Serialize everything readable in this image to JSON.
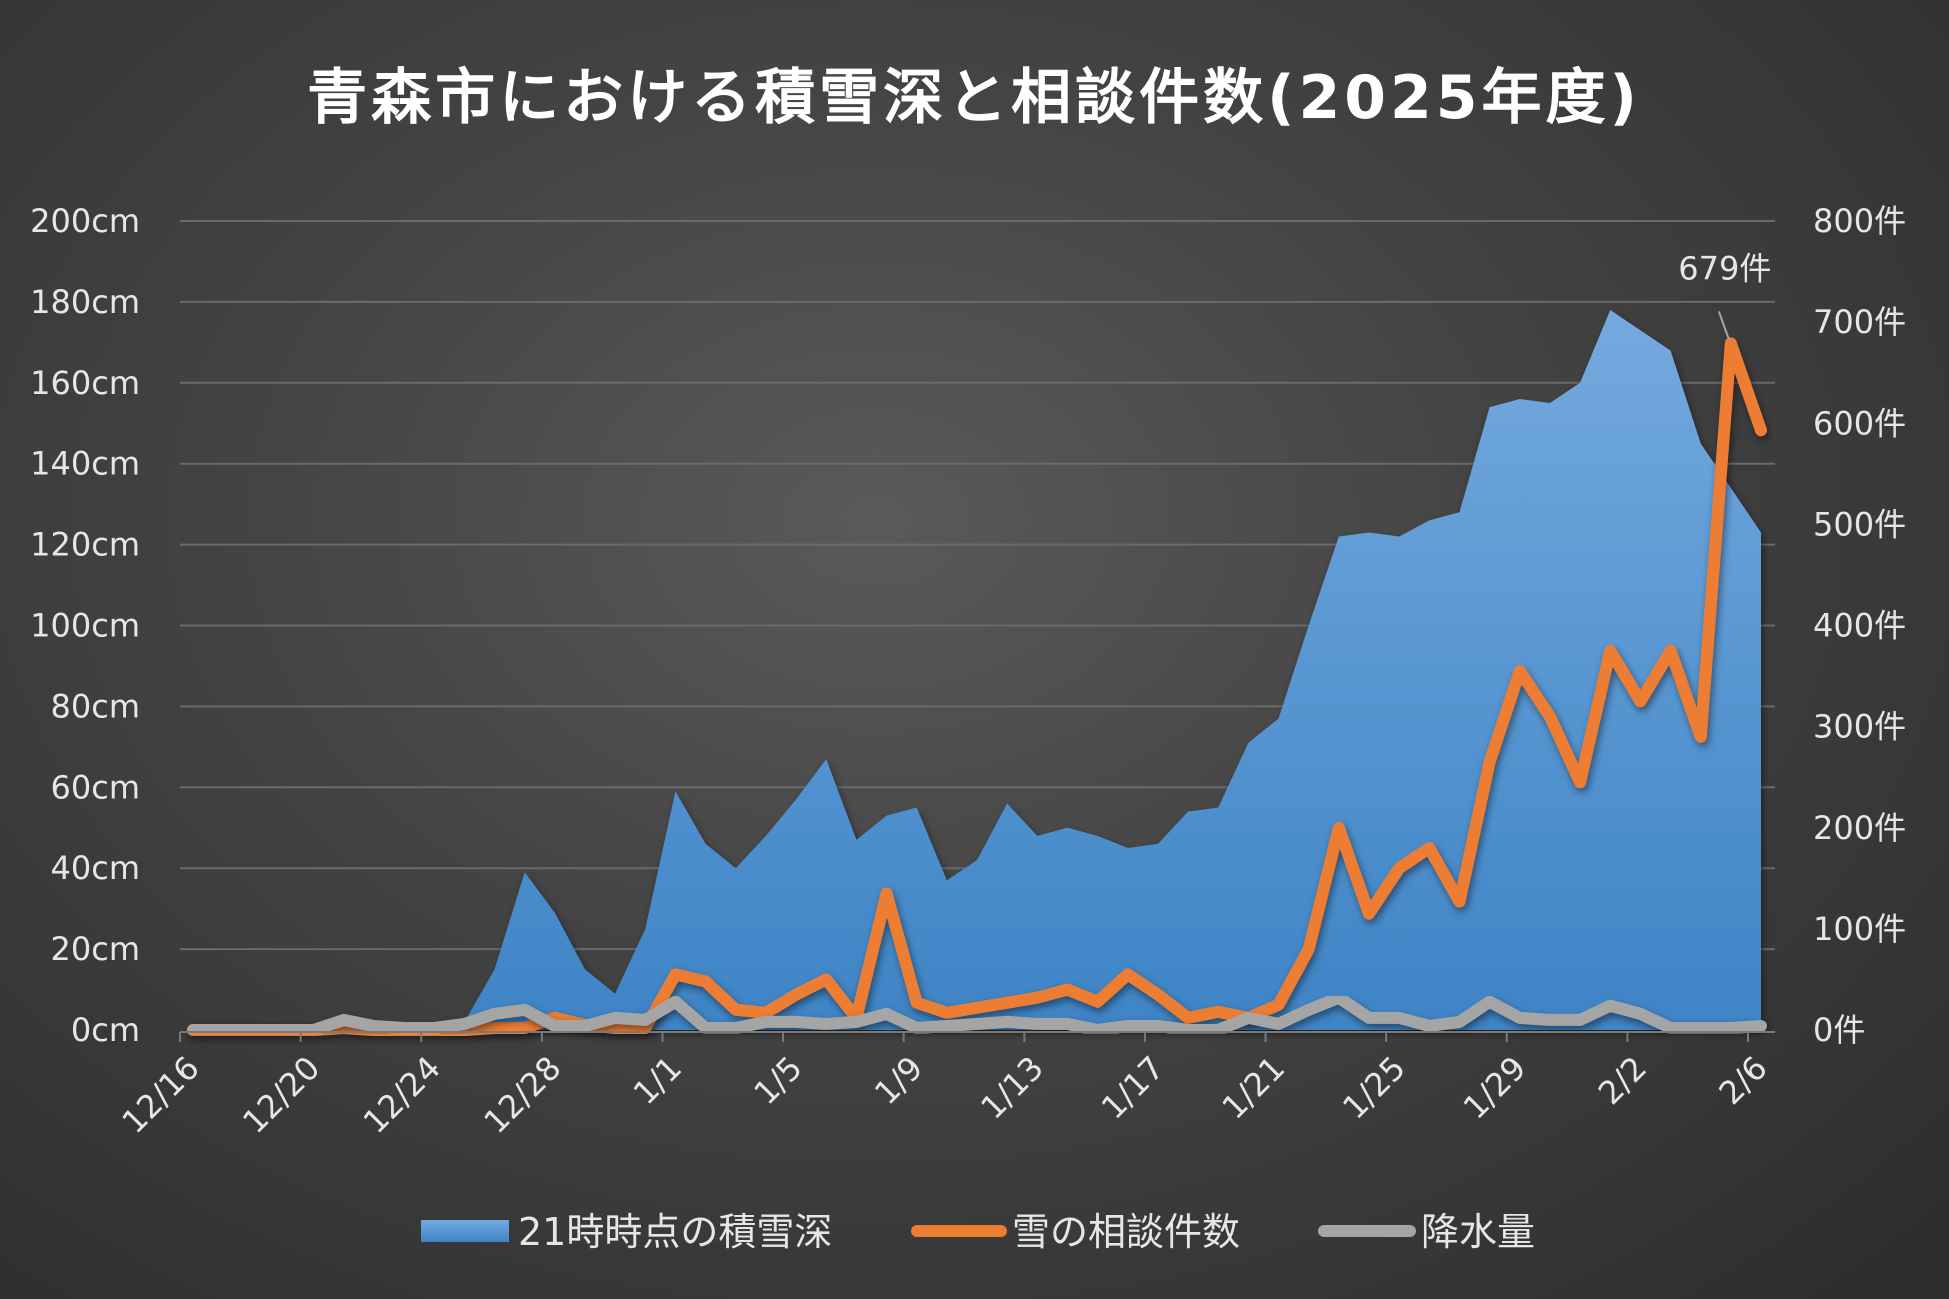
{
  "chart_data": {
    "type": "area+line",
    "title": "青森市における積雪深と相談件数(2025年度)",
    "x": [
      "12/16",
      "12/17",
      "12/18",
      "12/19",
      "12/20",
      "12/21",
      "12/22",
      "12/23",
      "12/24",
      "12/25",
      "12/26",
      "12/27",
      "12/28",
      "12/29",
      "12/30",
      "12/31",
      "1/1",
      "1/2",
      "1/3",
      "1/4",
      "1/5",
      "1/6",
      "1/7",
      "1/8",
      "1/9",
      "1/10",
      "1/11",
      "1/12",
      "1/13",
      "1/14",
      "1/15",
      "1/16",
      "1/17",
      "1/18",
      "1/19",
      "1/20",
      "1/21",
      "1/22",
      "1/23",
      "1/24",
      "1/25",
      "1/26",
      "1/27",
      "1/28",
      "1/29",
      "1/30",
      "1/31",
      "2/1",
      "2/2",
      "2/3",
      "2/4",
      "2/5",
      "2/6"
    ],
    "x_tick_labels": [
      "12/16",
      "12/20",
      "12/24",
      "12/28",
      "1/1",
      "1/5",
      "1/9",
      "1/13",
      "1/17",
      "1/21",
      "1/25",
      "1/29",
      "2/2",
      "2/6"
    ],
    "y_left": {
      "ticks": [
        "0cm",
        "20cm",
        "40cm",
        "60cm",
        "80cm",
        "100cm",
        "120cm",
        "140cm",
        "160cm",
        "180cm",
        "200cm"
      ],
      "range": [
        0,
        200
      ]
    },
    "y_right": {
      "ticks": [
        "0件",
        "100件",
        "200件",
        "300件",
        "400件",
        "500件",
        "600件",
        "700件",
        "800件"
      ],
      "range": [
        0,
        800
      ]
    },
    "grid": true,
    "legend_position": "bottom",
    "series": [
      {
        "name": "21時時点の積雪深",
        "type": "area",
        "axis": "left",
        "color": "#4a90d9",
        "values": [
          0,
          0,
          0,
          0,
          0,
          0,
          0,
          0,
          0,
          2,
          15,
          39,
          29,
          15,
          9,
          25,
          59,
          46,
          40,
          48,
          57,
          67,
          47,
          53,
          55,
          37,
          42,
          56,
          48,
          50,
          48,
          45,
          46,
          54,
          55,
          71,
          77,
          100,
          122,
          123,
          122,
          126,
          128,
          154,
          156,
          155,
          160,
          178,
          173,
          168,
          145,
          134,
          123
        ]
      },
      {
        "name": "雪の相談件数",
        "type": "line",
        "axis": "right",
        "color": "#ed7d31",
        "values": [
          0,
          0,
          0,
          0,
          0,
          2,
          0,
          0,
          0,
          0,
          2,
          2,
          12,
          5,
          2,
          2,
          55,
          48,
          20,
          17,
          35,
          50,
          12,
          135,
          27,
          17,
          22,
          27,
          32,
          40,
          28,
          55,
          35,
          12,
          18,
          12,
          25,
          80,
          200,
          115,
          160,
          180,
          127,
          265,
          355,
          310,
          245,
          375,
          325,
          375,
          290,
          679,
          593
        ]
      },
      {
        "name": "降水量",
        "type": "line",
        "axis": "left",
        "color": "#a5a5a5",
        "values": [
          0,
          0,
          0,
          0,
          0,
          2.5,
          1,
          0.5,
          0.5,
          1.5,
          4,
          5,
          1,
          1,
          3,
          2.5,
          7,
          0.5,
          0.5,
          2,
          2,
          1.5,
          2,
          4,
          0.5,
          1,
          1.5,
          2,
          1.5,
          1.5,
          0,
          1,
          1,
          0,
          0,
          3,
          1.5,
          5,
          8,
          3,
          3,
          1,
          2,
          7,
          3,
          2.5,
          2.5,
          6,
          4,
          0.5,
          0.5,
          0.5,
          1
        ]
      }
    ],
    "annotations": [
      {
        "series": "雪の相談件数",
        "x": "2/5",
        "text": "679件"
      }
    ]
  }
}
